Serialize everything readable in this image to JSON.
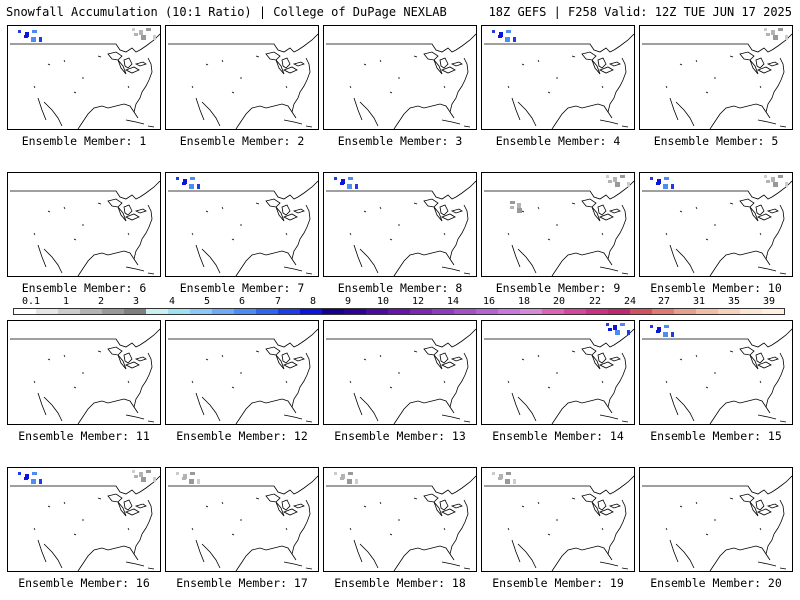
{
  "header": {
    "title": "Snowfall Accumulation (10:1 Ratio) | College of DuPage NEXLAB",
    "run_info": "18Z GEFS | F258 Valid: 12Z TUE JUN 17 2025"
  },
  "panels": [
    {
      "label": "Ensemble Member: 1",
      "snow": [
        {
          "region": "northeast",
          "intensity": "light"
        },
        {
          "region": "pacific-northwest",
          "intensity": "moderate"
        }
      ]
    },
    {
      "label": "Ensemble Member: 2",
      "snow": []
    },
    {
      "label": "Ensemble Member: 3",
      "snow": []
    },
    {
      "label": "Ensemble Member: 4",
      "snow": [
        {
          "region": "pacific-northwest",
          "intensity": "moderate"
        }
      ]
    },
    {
      "label": "Ensemble Member: 5",
      "snow": [
        {
          "region": "northeast",
          "intensity": "light"
        }
      ]
    },
    {
      "label": "Ensemble Member: 6",
      "snow": []
    },
    {
      "label": "Ensemble Member: 7",
      "snow": [
        {
          "region": "pacific-northwest",
          "intensity": "moderate"
        }
      ]
    },
    {
      "label": "Ensemble Member: 8",
      "snow": [
        {
          "region": "pacific-northwest",
          "intensity": "moderate"
        }
      ]
    },
    {
      "label": "Ensemble Member: 9",
      "snow": [
        {
          "region": "northeast",
          "intensity": "light"
        },
        {
          "region": "rockies",
          "intensity": "light"
        }
      ]
    },
    {
      "label": "Ensemble Member: 10",
      "snow": [
        {
          "region": "pacific-northwest",
          "intensity": "moderate"
        },
        {
          "region": "northeast",
          "intensity": "light"
        }
      ]
    },
    {
      "label": "Ensemble Member: 11",
      "snow": []
    },
    {
      "label": "Ensemble Member: 12",
      "snow": []
    },
    {
      "label": "Ensemble Member: 13",
      "snow": []
    },
    {
      "label": "Ensemble Member: 14",
      "snow": [
        {
          "region": "northeast",
          "intensity": "moderate"
        }
      ]
    },
    {
      "label": "Ensemble Member: 15",
      "snow": [
        {
          "region": "pacific-northwest",
          "intensity": "moderate"
        }
      ]
    },
    {
      "label": "Ensemble Member: 16",
      "snow": [
        {
          "region": "pacific-northwest",
          "intensity": "moderate"
        },
        {
          "region": "northeast",
          "intensity": "light"
        }
      ]
    },
    {
      "label": "Ensemble Member: 17",
      "snow": [
        {
          "region": "pacific-northwest",
          "intensity": "light"
        }
      ]
    },
    {
      "label": "Ensemble Member: 18",
      "snow": [
        {
          "region": "pacific-northwest",
          "intensity": "light"
        }
      ]
    },
    {
      "label": "Ensemble Member: 19",
      "snow": [
        {
          "region": "pacific-northwest",
          "intensity": "light"
        }
      ]
    },
    {
      "label": "Ensemble Member: 20",
      "snow": []
    }
  ],
  "colorbar": {
    "labels": [
      "0.1",
      "1",
      "2",
      "3",
      "4",
      "5",
      "6",
      "7",
      "8",
      "9",
      "10",
      "12",
      "14",
      "16",
      "18",
      "20",
      "22",
      "24",
      "27",
      "31",
      "35",
      "39"
    ],
    "colors": [
      "#ffffff",
      "#e6e6e6",
      "#cccccc",
      "#b3b3b3",
      "#999999",
      "#7f7f7f",
      "#c8f0f0",
      "#a0e0f0",
      "#8cc8f5",
      "#6eaaf5",
      "#4b8cf5",
      "#2d64f0",
      "#1e3ce6",
      "#0a14dc",
      "#14008c",
      "#2d0096",
      "#4b0aa0",
      "#6414aa",
      "#7a28b4",
      "#8c3cbe",
      "#a050c8",
      "#b464d2",
      "#c878dc",
      "#d28cd7",
      "#dc64b4",
      "#d2469b",
      "#c83282",
      "#be286e",
      "#d2505f",
      "#dc7a73",
      "#e6a08c",
      "#f0bea5",
      "#f5d2b9",
      "#fae6d2",
      "#fff0e1"
    ],
    "accent_text_color": "#000000"
  }
}
